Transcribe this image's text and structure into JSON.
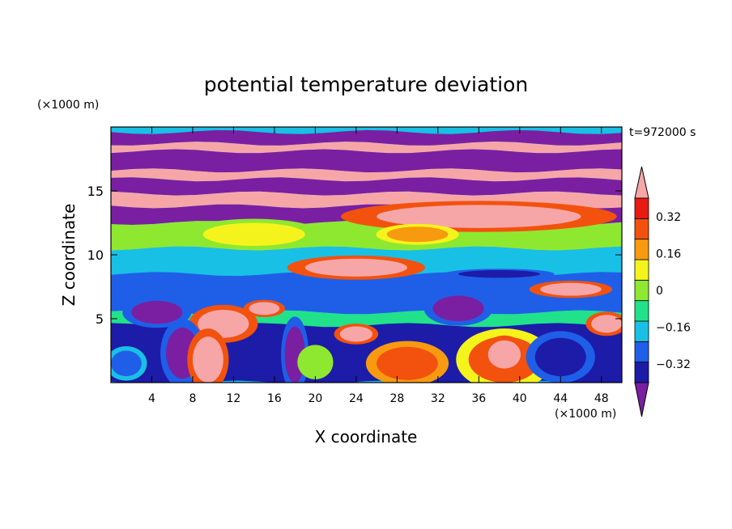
{
  "chart_data": {
    "type": "heatmap",
    "title": "potential temperature deviation",
    "xlabel": "X coordinate",
    "ylabel": "Z coordinate",
    "x_unit": "(×1000 m)",
    "y_unit": "(×1000 m)",
    "time_label": "t=972000 s",
    "xlim": [
      0,
      50
    ],
    "ylim": [
      0,
      20
    ],
    "x_ticks": [
      4,
      8,
      12,
      16,
      20,
      24,
      28,
      32,
      36,
      40,
      44,
      48
    ],
    "y_ticks": [
      5,
      10,
      15
    ],
    "colorbar": {
      "levels": [
        -0.4,
        -0.32,
        -0.24,
        -0.16,
        -0.08,
        0,
        0.08,
        0.16,
        0.24,
        0.32,
        0.4
      ],
      "tick_labels": [
        "0.32",
        "0.16",
        "0",
        "−0.16",
        "−0.32"
      ],
      "tick_values": [
        0.32,
        0.16,
        0,
        -0.16,
        -0.32
      ],
      "colors": [
        "#7a1fa2",
        "#1c1ca8",
        "#1f5fe8",
        "#19c0e6",
        "#21e28a",
        "#8fe830",
        "#f4f41c",
        "#f79a10",
        "#f2520e",
        "#e81a12",
        "#f7a6a8"
      ],
      "extend": "both"
    },
    "bands": [
      {
        "z": [
          18.7,
          19.6
        ],
        "value": -0.42
      },
      {
        "z": [
          18.1,
          18.7
        ],
        "value": 0.45
      },
      {
        "z": [
          16.6,
          18.1
        ],
        "value": -0.42
      },
      {
        "z": [
          15.9,
          16.6
        ],
        "value": 0.45
      },
      {
        "z": [
          14.8,
          15.9
        ],
        "value": -0.42
      },
      {
        "z": [
          13.8,
          14.8
        ],
        "value": 0.45
      },
      {
        "z": [
          12.5,
          13.8
        ],
        "value": -0.36
      },
      {
        "z": [
          10.5,
          12.5
        ],
        "value": 0.02
      },
      {
        "z": [
          8.5,
          10.5
        ],
        "value": -0.1
      },
      {
        "z": [
          5.5,
          8.5
        ],
        "value": -0.18
      },
      {
        "z": [
          4.5,
          5.5
        ],
        "value": -0.05
      },
      {
        "z": [
          0,
          4.5
        ],
        "value": -0.25
      }
    ],
    "features": [
      {
        "x": 36,
        "z": 13.0,
        "rx": 10,
        "rz": 0.9,
        "value": 0.45
      },
      {
        "x": 14,
        "z": 11.6,
        "rx": 5,
        "rz": 0.9,
        "value": 0.12
      },
      {
        "x": 30,
        "z": 11.6,
        "rx": 3,
        "rz": 0.6,
        "value": 0.18
      },
      {
        "x": 24,
        "z": 9.0,
        "rx": 5,
        "rz": 0.7,
        "value": 0.45
      },
      {
        "x": 38,
        "z": 8.5,
        "rx": 4,
        "rz": 0.3,
        "value": -0.3
      },
      {
        "x": 45,
        "z": 7.3,
        "rx": 3,
        "rz": 0.5,
        "value": 0.45
      },
      {
        "x": 4.5,
        "z": 5.5,
        "rx": 2.5,
        "rz": 0.9,
        "value": -0.42
      },
      {
        "x": 34,
        "z": 5.8,
        "rx": 2.5,
        "rz": 1.0,
        "value": -0.42
      },
      {
        "x": 11,
        "z": 4.6,
        "rx": 2.5,
        "rz": 1.1,
        "value": 0.45
      },
      {
        "x": 15,
        "z": 5.8,
        "rx": 1.5,
        "rz": 0.5,
        "value": 0.45
      },
      {
        "x": 7,
        "z": 2.3,
        "rx": 1.6,
        "rz": 2.0,
        "value": -0.42
      },
      {
        "x": 18,
        "z": 2.2,
        "rx": 1.0,
        "rz": 2.2,
        "value": -0.42
      },
      {
        "x": 20,
        "z": 1.6,
        "rx": 1.3,
        "rz": 1.0,
        "value": 0.05
      },
      {
        "x": 9.5,
        "z": 1.8,
        "rx": 1.5,
        "rz": 1.8,
        "value": 0.45
      },
      {
        "x": 29,
        "z": 1.5,
        "rx": 3,
        "rz": 1.3,
        "value": 0.3
      },
      {
        "x": 38.5,
        "z": 1.8,
        "rx": 3.5,
        "rz": 1.8,
        "value": 0.28
      },
      {
        "x": 38.5,
        "z": 2.2,
        "rx": 1.6,
        "rz": 1.1,
        "value": 0.45
      },
      {
        "x": 24,
        "z": 3.8,
        "rx": 1.6,
        "rz": 0.6,
        "value": 0.45
      },
      {
        "x": 48.5,
        "z": 4.6,
        "rx": 1.5,
        "rz": 0.7,
        "value": 0.45
      },
      {
        "x": 44,
        "z": 2.0,
        "rx": 2.5,
        "rz": 1.5,
        "value": -0.3
      },
      {
        "x": 1.5,
        "z": 1.5,
        "rx": 1.5,
        "rz": 1.0,
        "value": -0.2
      }
    ]
  }
}
